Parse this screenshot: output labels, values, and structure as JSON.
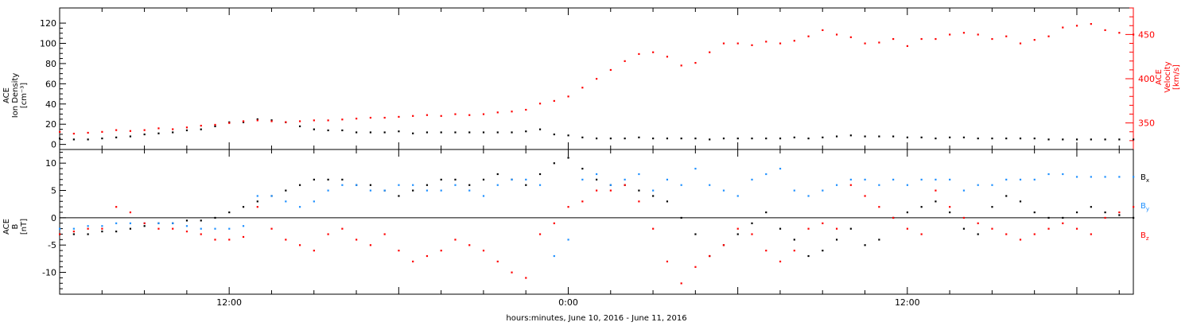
{
  "chart_data": [
    {
      "type": "scatter",
      "panel": "top",
      "ylabel_left": [
        "ACE",
        "Ion Density",
        "[cm⁻³]"
      ],
      "ylabel_right": [
        "ACE",
        "Velocity",
        "[km/s]"
      ],
      "y_left_ticks": [
        "0",
        "20",
        "40",
        "60",
        "80",
        "100",
        "120"
      ],
      "y_right_ticks": [
        "350",
        "400",
        "450"
      ],
      "ylim_left": [
        -5,
        135
      ],
      "ylim_right": [
        320,
        480
      ],
      "colors": {
        "density": "#000000",
        "velocity": "#ff0000"
      },
      "series": [
        {
          "name": "Ion Density",
          "axis": "left",
          "color": "#000000",
          "x": [
            0,
            1,
            2,
            3,
            4,
            5,
            6,
            7,
            8,
            9,
            10,
            11,
            12,
            13,
            14,
            15,
            16,
            17,
            18,
            19,
            20,
            21,
            22,
            23,
            24,
            25,
            26,
            27,
            28,
            29,
            30,
            31,
            32,
            33,
            34,
            35,
            36,
            37,
            38,
            39,
            40,
            41,
            42,
            43,
            44,
            45,
            46,
            47,
            48,
            49,
            50,
            51,
            52,
            53,
            54,
            55,
            56,
            57,
            58,
            59,
            60,
            61,
            62,
            63,
            64,
            65,
            66,
            67,
            68,
            69,
            70,
            71,
            72,
            73,
            74,
            75,
            76
          ],
          "y": [
            6,
            5,
            5,
            6,
            7,
            8,
            10,
            11,
            12,
            14,
            15,
            18,
            22,
            22,
            25,
            24,
            22,
            18,
            15,
            14,
            14,
            12,
            12,
            12,
            13,
            11,
            12,
            12,
            12,
            12,
            12,
            12,
            12,
            13,
            15,
            10,
            9,
            7,
            6,
            6,
            6,
            7,
            6,
            6,
            6,
            6,
            5,
            6,
            6,
            6,
            6,
            6,
            7,
            6,
            7,
            8,
            9,
            8,
            8,
            8,
            7,
            7,
            6,
            7,
            7,
            6,
            6,
            6,
            6,
            6,
            5,
            5,
            5,
            5,
            5,
            5,
            5
          ]
        },
        {
          "name": "Velocity",
          "axis": "right",
          "color": "#ff0000",
          "x": [
            0,
            1,
            2,
            3,
            4,
            5,
            6,
            7,
            8,
            9,
            10,
            11,
            12,
            13,
            14,
            15,
            16,
            17,
            18,
            19,
            20,
            21,
            22,
            23,
            24,
            25,
            26,
            27,
            28,
            29,
            30,
            31,
            32,
            33,
            34,
            35,
            36,
            37,
            38,
            39,
            40,
            41,
            42,
            43,
            44,
            45,
            46,
            47,
            48,
            49,
            50,
            51,
            52,
            53,
            54,
            55,
            56,
            57,
            58,
            59,
            60,
            61,
            62,
            63,
            64,
            65,
            66,
            67,
            68,
            69,
            70,
            71,
            72,
            73,
            74,
            75,
            76
          ],
          "y": [
            340,
            338,
            339,
            340,
            342,
            341,
            342,
            344,
            343,
            345,
            347,
            348,
            350,
            352,
            353,
            352,
            351,
            352,
            353,
            353,
            354,
            355,
            356,
            356,
            357,
            358,
            359,
            358,
            360,
            359,
            360,
            362,
            363,
            365,
            372,
            375,
            380,
            390,
            400,
            410,
            420,
            428,
            430,
            425,
            415,
            418,
            430,
            440,
            440,
            438,
            442,
            440,
            443,
            448,
            455,
            450,
            447,
            440,
            441,
            445,
            437,
            445,
            445,
            450,
            452,
            450,
            445,
            448,
            440,
            444,
            448,
            458,
            460,
            462,
            455,
            452,
            450
          ]
        }
      ]
    },
    {
      "type": "scatter",
      "panel": "bottom",
      "ylabel": [
        "ACE",
        "B",
        "[nT]"
      ],
      "y_ticks": [
        "-10",
        "-5",
        "0",
        "5",
        "10"
      ],
      "ylim": [
        -14,
        12.5
      ],
      "xlabel": "hours:minutes, June 10, 2016 - June 11, 2016",
      "x_tick_labels": [
        "12:00",
        "0:00",
        "12:00"
      ],
      "xlim_hours": [
        0,
        76
      ],
      "legend": [
        {
          "label": "B",
          "sub": "x",
          "color": "#000000"
        },
        {
          "label": "B",
          "sub": "y",
          "color": "#1e90ff"
        },
        {
          "label": "B",
          "sub": "z",
          "color": "#ff0000"
        }
      ],
      "series": [
        {
          "name": "Bx",
          "color": "#000000",
          "x": [
            0,
            1,
            2,
            3,
            4,
            5,
            6,
            7,
            8,
            9,
            10,
            11,
            12,
            13,
            14,
            15,
            16,
            17,
            18,
            19,
            20,
            21,
            22,
            23,
            24,
            25,
            26,
            27,
            28,
            29,
            30,
            31,
            32,
            33,
            34,
            35,
            36,
            37,
            38,
            39,
            40,
            41,
            42,
            43,
            44,
            45,
            46,
            47,
            48,
            49,
            50,
            51,
            52,
            53,
            54,
            55,
            56,
            57,
            58,
            59,
            60,
            61,
            62,
            63,
            64,
            65,
            66,
            67,
            68,
            69,
            70,
            71,
            72,
            73,
            74,
            75,
            76
          ],
          "y": [
            -3,
            -3,
            -3,
            -2.5,
            -2.5,
            -2,
            -1.5,
            -1,
            -1,
            -0.5,
            -0.5,
            0,
            1,
            2,
            3,
            4,
            5,
            6,
            7,
            7,
            7,
            6,
            6,
            5,
            4,
            5,
            6,
            7,
            7,
            6,
            7,
            8,
            7,
            6,
            8,
            10,
            11,
            9,
            7,
            6,
            6,
            5,
            4,
            3,
            0,
            -3,
            -7,
            -5,
            -3,
            -1,
            1,
            -2,
            -4,
            -7,
            -6,
            -4,
            -2,
            -5,
            -4,
            0,
            1,
            2,
            3,
            1,
            -2,
            -3,
            2,
            4,
            3,
            1,
            0,
            0,
            1,
            2,
            1,
            0.5,
            0
          ]
        },
        {
          "name": "By",
          "color": "#1e90ff",
          "x": [
            0,
            1,
            2,
            3,
            4,
            5,
            6,
            7,
            8,
            9,
            10,
            11,
            12,
            13,
            14,
            15,
            16,
            17,
            18,
            19,
            20,
            21,
            22,
            23,
            24,
            25,
            26,
            27,
            28,
            29,
            30,
            31,
            32,
            33,
            34,
            35,
            36,
            37,
            38,
            39,
            40,
            41,
            42,
            43,
            44,
            45,
            46,
            47,
            48,
            49,
            50,
            51,
            52,
            53,
            54,
            55,
            56,
            57,
            58,
            59,
            60,
            61,
            62,
            63,
            64,
            65,
            66,
            67,
            68,
            69,
            70,
            71,
            72,
            73,
            74,
            75,
            76
          ],
          "y": [
            -2,
            -2,
            -1.5,
            -1.5,
            -1,
            -1,
            -1,
            -1,
            -1,
            -1.5,
            -2,
            -2,
            -2,
            -1.5,
            4,
            4,
            3,
            2,
            3,
            5,
            6,
            6,
            5,
            5,
            6,
            6,
            5,
            5,
            6,
            5,
            4,
            6,
            7,
            7,
            6,
            -7,
            -4,
            7,
            8,
            6,
            7,
            8,
            5,
            7,
            6,
            9,
            6,
            5,
            4,
            7,
            8,
            9,
            5,
            4,
            5,
            6,
            7,
            7,
            6,
            7,
            6,
            7,
            7,
            7,
            5,
            6,
            6,
            7,
            7,
            7,
            8,
            8,
            7.5,
            7.5,
            7.5,
            7.5,
            7.5
          ]
        },
        {
          "name": "Bz",
          "color": "#ff0000",
          "x": [
            0,
            1,
            2,
            3,
            4,
            5,
            6,
            7,
            8,
            9,
            10,
            11,
            12,
            13,
            14,
            15,
            16,
            17,
            18,
            19,
            20,
            21,
            22,
            23,
            24,
            25,
            26,
            27,
            28,
            29,
            30,
            31,
            32,
            33,
            34,
            35,
            36,
            37,
            38,
            39,
            40,
            41,
            42,
            43,
            44,
            45,
            46,
            47,
            48,
            49,
            50,
            51,
            52,
            53,
            54,
            55,
            56,
            57,
            58,
            59,
            60,
            61,
            62,
            63,
            64,
            65,
            66,
            67,
            68,
            69,
            70,
            71,
            72,
            73,
            74,
            75,
            76
          ],
          "y": [
            -3,
            -2.5,
            -2,
            -2,
            2,
            1,
            -1,
            -2,
            -2,
            -2.5,
            -3,
            -4,
            -4,
            -3.5,
            2,
            -2,
            -4,
            -5,
            -6,
            -3,
            -2,
            -4,
            -5,
            -3,
            -6,
            -8,
            -7,
            -6,
            -4,
            -5,
            -6,
            -8,
            -10,
            -11,
            -3,
            -1,
            2,
            3,
            5,
            5,
            6,
            3,
            -2,
            -8,
            -12,
            -9,
            -7,
            -5,
            -2,
            -3,
            -6,
            -8,
            -6,
            -2,
            -1,
            -2,
            6,
            4,
            2,
            0,
            -2,
            -3,
            5,
            2,
            0,
            -1,
            -2,
            -3,
            -4,
            -3,
            -2,
            -1,
            -2,
            -3,
            0,
            1,
            2
          ]
        }
      ]
    }
  ]
}
